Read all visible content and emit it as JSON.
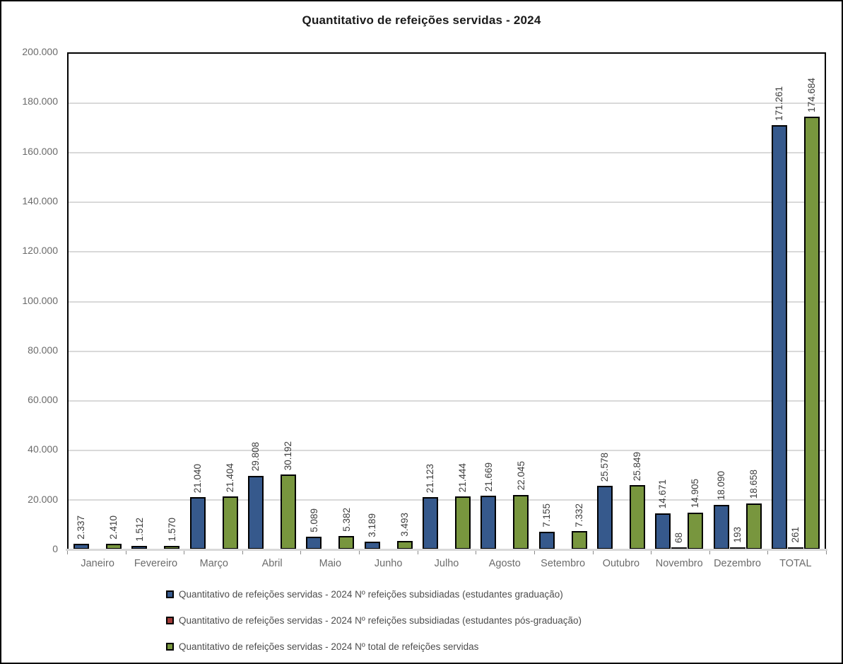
{
  "title": "Quantitativo de refeições servidas - 2024",
  "chart_data": {
    "type": "bar",
    "title": "Quantitativo de refeições servidas - 2024",
    "xlabel": "",
    "ylabel": "",
    "ylim": [
      0,
      200000
    ],
    "ytick_step": 20000,
    "ytick_labels": [
      "0",
      "20.000",
      "40.000",
      "60.000",
      "80.000",
      "100.000",
      "120.000",
      "140.000",
      "160.000",
      "180.000",
      "200.000"
    ],
    "grid": true,
    "legend_position": "bottom-left",
    "bar_label_rotation": 90,
    "categories": [
      "Janeiro",
      "Fevereiro",
      "Março",
      "Abril",
      "Maio",
      "Junho",
      "Julho",
      "Agosto",
      "Setembro",
      "Outubro",
      "Novembro",
      "Dezembro",
      "TOTAL"
    ],
    "series": [
      {
        "name": "Quantitativo de refeições servidas - 2024 Nº refeições subsidiadas (estudantes graduação)",
        "color": "#36598C",
        "border_color": "#000000",
        "values": [
          2337,
          1512,
          21040,
          29808,
          5089,
          3189,
          21123,
          21669,
          7155,
          25578,
          14671,
          18090,
          171261
        ],
        "labels": [
          "2.337",
          "1.512",
          "21.040",
          "29.808",
          "5.089",
          "3.189",
          "21.123",
          "21.669",
          "7.155",
          "25.578",
          "14.671",
          "18.090",
          "171.261"
        ]
      },
      {
        "name": "Quantitativo de refeições servidas - 2024 Nº refeições subsidiadas (estudantes pós-graduação)",
        "color": "#A13B38",
        "border_color": "#000000",
        "values": [
          0,
          0,
          0,
          0,
          0,
          0,
          0,
          0,
          0,
          0,
          68,
          193,
          261
        ],
        "labels": [
          null,
          null,
          null,
          null,
          null,
          null,
          null,
          null,
          null,
          null,
          "68",
          "193",
          "261"
        ]
      },
      {
        "name": "Quantitativo de refeições servidas - 2024 Nº total de refeições servidas",
        "color": "#78963E",
        "border_color": "#000000",
        "values": [
          2410,
          1570,
          21404,
          30192,
          5382,
          3493,
          21444,
          22045,
          7332,
          25849,
          14905,
          18658,
          174684
        ],
        "labels": [
          "2.410",
          "1.570",
          "21.404",
          "30.192",
          "5.382",
          "3.493",
          "21.444",
          "22.045",
          "7.332",
          "25.849",
          "14.905",
          "18.658",
          "174.684"
        ]
      }
    ]
  },
  "legend": {
    "items": [
      {
        "label": "Quantitativo de refeições servidas - 2024 Nº refeições subsidiadas (estudantes graduação)",
        "color": "#36598C"
      },
      {
        "label": "Quantitativo de refeições servidas - 2024 Nº refeições subsidiadas (estudantes pós-graduação)",
        "color": "#A13B38"
      },
      {
        "label": "Quantitativo de refeições servidas - 2024 Nº total de refeições servidas",
        "color": "#78963E"
      }
    ]
  }
}
